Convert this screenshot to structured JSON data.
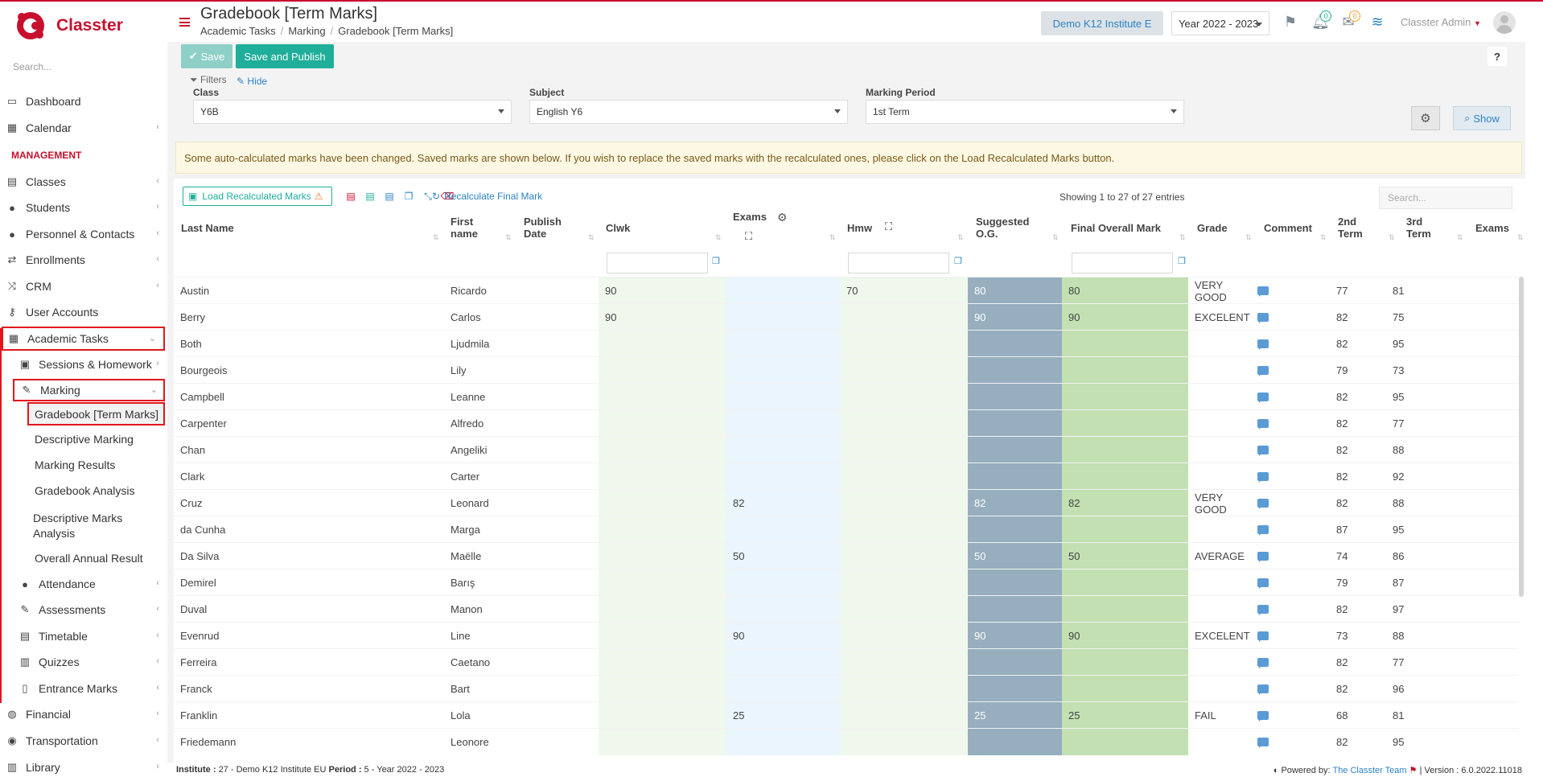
{
  "brand": {
    "name": "Classter",
    "color": "#c8102e"
  },
  "sidebar": {
    "search_placeholder": "Search...",
    "section_management": "MANAGEMENT",
    "items": [
      {
        "label": "Dashboard",
        "icon": "laptop-icon"
      },
      {
        "label": "Calendar",
        "icon": "calendar-icon"
      },
      {
        "label": "Classes",
        "icon": "classes-icon"
      },
      {
        "label": "Students",
        "icon": "students-icon"
      },
      {
        "label": "Personnel & Contacts",
        "icon": "person-icon"
      },
      {
        "label": "Enrollments",
        "icon": "swap-icon"
      },
      {
        "label": "CRM",
        "icon": "crm-icon"
      },
      {
        "label": "User Accounts",
        "icon": "key-icon"
      },
      {
        "label": "Academic Tasks",
        "icon": "grid-icon"
      },
      {
        "label": "Sessions & Homework",
        "icon": "sessions-icon"
      },
      {
        "label": "Marking",
        "icon": "pencil-icon"
      },
      {
        "label": "Gradebook [Term Marks]"
      },
      {
        "label": "Descriptive Marking"
      },
      {
        "label": "Marking Results"
      },
      {
        "label": "Gradebook Analysis"
      },
      {
        "label": "Descriptive Marks Analysis"
      },
      {
        "label": "Overall Annual Result"
      },
      {
        "label": "Attendance",
        "icon": "attendance-icon"
      },
      {
        "label": "Assessments",
        "icon": "pencil-icon"
      },
      {
        "label": "Timetable",
        "icon": "timetable-icon"
      },
      {
        "label": "Quizzes",
        "icon": "quiz-icon"
      },
      {
        "label": "Entrance Marks",
        "icon": "doc-icon"
      },
      {
        "label": "Financial",
        "icon": "coins-icon"
      },
      {
        "label": "Transportation",
        "icon": "car-icon"
      },
      {
        "label": "Library",
        "icon": "library-icon"
      }
    ]
  },
  "header": {
    "title": "Gradebook [Term Marks]",
    "breadcrumb": [
      "Academic Tasks",
      "Marking",
      "Gradebook [Term Marks]"
    ],
    "institute": "Demo K12 Institute E",
    "year": "Year 2022 - 2023",
    "notifications_count": "0",
    "messages_count": "0",
    "user": "Classter Admin"
  },
  "toolbar": {
    "save": "Save",
    "save_publish": "Save and Publish",
    "help": "?"
  },
  "filters": {
    "title": "Filters",
    "hide": "Hide",
    "class_label": "Class",
    "class_value": "Y6B",
    "subject_label": "Subject",
    "subject_value": "English Y6",
    "period_label": "Marking Period",
    "period_value": "1st Term",
    "show": "Show"
  },
  "alert": "Some auto-calculated marks have been changed. Saved marks are shown below. If you wish to replace the saved marks with the recalculated ones, please click on the Load Recalculated Marks button.",
  "table_toolbar": {
    "load_recalc": "Load Recalculated Marks",
    "recalc_final": "Recalculate Final Mark",
    "showing": "Showing 1 to 27 of 27 entries",
    "search_placeholder": "Search..."
  },
  "columns": {
    "last_name": "Last Name",
    "first_name_1": "First",
    "first_name_2": "name",
    "publish_1": "Publish",
    "publish_2": "Date",
    "clwk": "Clwk",
    "exams": "Exams",
    "hmw": "Hmw",
    "suggested_1": "Suggested",
    "suggested_2": "O.G.",
    "final": "Final Overall Mark",
    "grade": "Grade",
    "comment": "Comment",
    "term2_1": "2nd",
    "term2_2": "Term",
    "term3_1": "3rd",
    "term3_2": "Term",
    "exams2": "Exams"
  },
  "rows": [
    {
      "last": "Austin",
      "first": "Ricardo",
      "clwk": "90",
      "exams": "",
      "hmw": "70",
      "sug": "80",
      "final": "80",
      "grade": "VERY GOOD",
      "t2": "77",
      "t3": "81"
    },
    {
      "last": "Berry",
      "first": "Carlos",
      "clwk": "90",
      "exams": "",
      "hmw": "",
      "sug": "90",
      "final": "90",
      "grade": "EXCELENT",
      "t2": "82",
      "t3": "75"
    },
    {
      "last": "Both",
      "first": "Ljudmila",
      "clwk": "",
      "exams": "",
      "hmw": "",
      "sug": "",
      "final": "",
      "grade": "",
      "t2": "82",
      "t3": "95"
    },
    {
      "last": "Bourgeois",
      "first": "Lily",
      "clwk": "",
      "exams": "",
      "hmw": "",
      "sug": "",
      "final": "",
      "grade": "",
      "t2": "79",
      "t3": "73"
    },
    {
      "last": "Campbell",
      "first": "Leanne",
      "clwk": "",
      "exams": "",
      "hmw": "",
      "sug": "",
      "final": "",
      "grade": "",
      "t2": "82",
      "t3": "95"
    },
    {
      "last": "Carpenter",
      "first": "Alfredo",
      "clwk": "",
      "exams": "",
      "hmw": "",
      "sug": "",
      "final": "",
      "grade": "",
      "t2": "82",
      "t3": "77"
    },
    {
      "last": "Chan",
      "first": "Angeliki",
      "clwk": "",
      "exams": "",
      "hmw": "",
      "sug": "",
      "final": "",
      "grade": "",
      "t2": "82",
      "t3": "88"
    },
    {
      "last": "Clark",
      "first": "Carter",
      "clwk": "",
      "exams": "",
      "hmw": "",
      "sug": "",
      "final": "",
      "grade": "",
      "t2": "82",
      "t3": "92"
    },
    {
      "last": "Cruz",
      "first": "Leonard",
      "clwk": "",
      "exams": "82",
      "hmw": "",
      "sug": "82",
      "final": "82",
      "grade": "VERY GOOD",
      "t2": "82",
      "t3": "88"
    },
    {
      "last": "da Cunha",
      "first": "Marga",
      "clwk": "",
      "exams": "",
      "hmw": "",
      "sug": "",
      "final": "",
      "grade": "",
      "t2": "87",
      "t3": "95"
    },
    {
      "last": "Da Silva",
      "first": "Maëlle",
      "clwk": "",
      "exams": "50",
      "hmw": "",
      "sug": "50",
      "final": "50",
      "grade": "AVERAGE",
      "t2": "74",
      "t3": "86"
    },
    {
      "last": "Demirel",
      "first": "Barış",
      "clwk": "",
      "exams": "",
      "hmw": "",
      "sug": "",
      "final": "",
      "grade": "",
      "t2": "79",
      "t3": "87"
    },
    {
      "last": "Duval",
      "first": "Manon",
      "clwk": "",
      "exams": "",
      "hmw": "",
      "sug": "",
      "final": "",
      "grade": "",
      "t2": "82",
      "t3": "97"
    },
    {
      "last": "Evenrud",
      "first": "Line",
      "clwk": "",
      "exams": "90",
      "hmw": "",
      "sug": "90",
      "final": "90",
      "grade": "EXCELENT",
      "t2": "73",
      "t3": "88"
    },
    {
      "last": "Ferreira",
      "first": "Caetano",
      "clwk": "",
      "exams": "",
      "hmw": "",
      "sug": "",
      "final": "",
      "grade": "",
      "t2": "82",
      "t3": "77"
    },
    {
      "last": "Franck",
      "first": "Bart",
      "clwk": "",
      "exams": "",
      "hmw": "",
      "sug": "",
      "final": "",
      "grade": "",
      "t2": "82",
      "t3": "96"
    },
    {
      "last": "Franklin",
      "first": "Lola",
      "clwk": "",
      "exams": "25",
      "hmw": "",
      "sug": "25",
      "final": "25",
      "grade": "FAIL",
      "t2": "68",
      "t3": "81"
    },
    {
      "last": "Friedemann",
      "first": "Leonore",
      "clwk": "",
      "exams": "",
      "hmw": "",
      "sug": "",
      "final": "",
      "grade": "",
      "t2": "82",
      "t3": "95"
    }
  ],
  "footer": {
    "institute_label": "Institute :",
    "institute_value": "27 - Demo K12 Institute EU",
    "period_label": "Period :",
    "period_value": "5 - Year 2022 - 2023",
    "powered": "Powered by:",
    "team": "The Classter Team",
    "version": "| Version : 6.0.2022.11018"
  }
}
